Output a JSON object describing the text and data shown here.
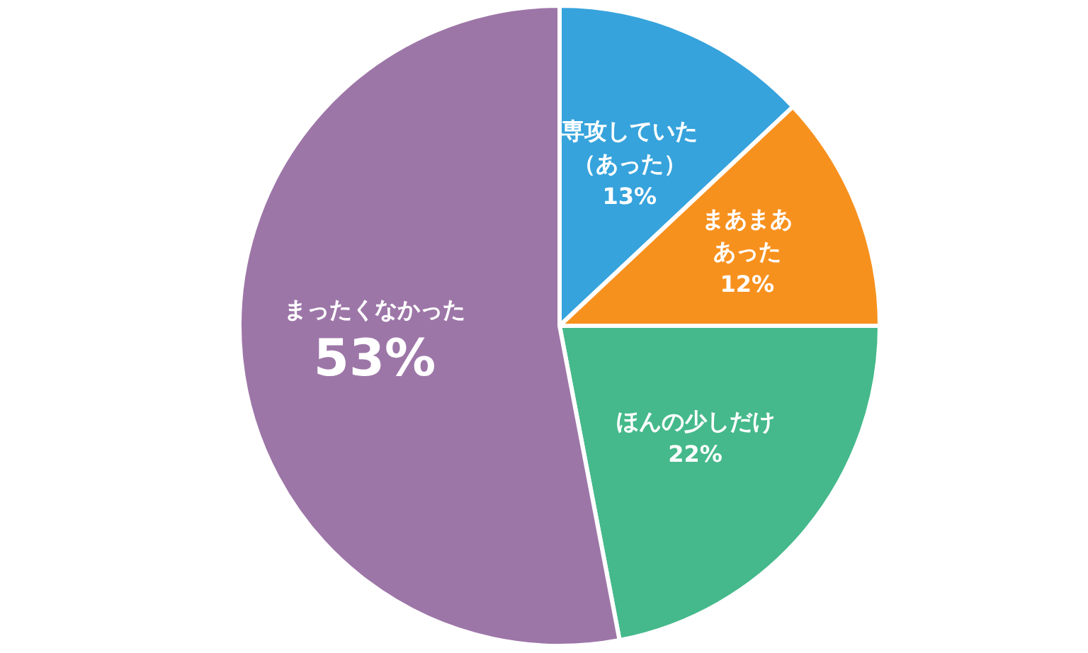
{
  "chart_data": {
    "type": "pie",
    "categories": [
      "専攻していた（あった）",
      "まあまああった",
      "ほんの少しだけ",
      "まったくなかった"
    ],
    "values": [
      13,
      12,
      22,
      53
    ],
    "value_labels": [
      "13%",
      "12%",
      "22%",
      "53%"
    ],
    "colors": [
      "#36a3dc",
      "#f7911e",
      "#45b98b",
      "#9d76a8"
    ]
  }
}
